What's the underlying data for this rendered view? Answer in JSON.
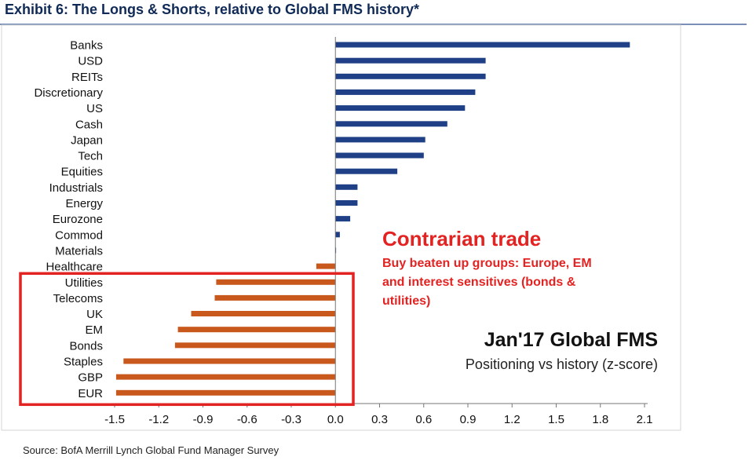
{
  "header": {
    "title": "Exhibit 6: The Longs & Shorts, relative to Global FMS history*"
  },
  "source": "Source: BofA Merrill Lynch Global Fund Manager Survey",
  "colors": {
    "positive": "#1f3f86",
    "negative": "#c8581c",
    "highlight_box": "#e32222",
    "header": "#0f2a56"
  },
  "annotations": {
    "contrarian_title": "Contrarian trade",
    "contrarian_lines": [
      "Buy beaten up groups: Europe, EM",
      "and interest sensitives (bonds &",
      "utilities)"
    ],
    "fms_title": "Jan'17 Global FMS",
    "fms_subtitle": "Positioning vs history (z-score)"
  },
  "chart_data": {
    "type": "bar",
    "orientation": "horizontal",
    "categories": [
      "Banks",
      "USD",
      "REITs",
      "Discretionary",
      "US",
      "Cash",
      "Japan",
      "Tech",
      "Equities",
      "Industrials",
      "Energy",
      "Eurozone",
      "Commod",
      "Materials",
      "Healthcare",
      "Utilities",
      "Telecoms",
      "UK",
      "EM",
      "Bonds",
      "Staples",
      "GBP",
      "EUR"
    ],
    "values": [
      2.0,
      1.02,
      1.02,
      0.95,
      0.88,
      0.76,
      0.61,
      0.6,
      0.42,
      0.15,
      0.15,
      0.1,
      0.03,
      0.0,
      -0.13,
      -0.81,
      -0.82,
      -0.98,
      -1.07,
      -1.09,
      -1.44,
      -1.49,
      -1.49
    ],
    "xlim": [
      -1.5,
      2.1
    ],
    "xticks": [
      "-1.5",
      "-1.2",
      "-0.9",
      "-0.6",
      "-0.3",
      "0.0",
      "0.3",
      "0.6",
      "0.9",
      "1.2",
      "1.5",
      "1.8",
      "2.1"
    ],
    "highlighted_categories": [
      "Utilities",
      "Telecoms",
      "UK",
      "EM",
      "Bonds",
      "Staples",
      "GBP",
      "EUR"
    ],
    "grid": false,
    "legend": "none"
  }
}
